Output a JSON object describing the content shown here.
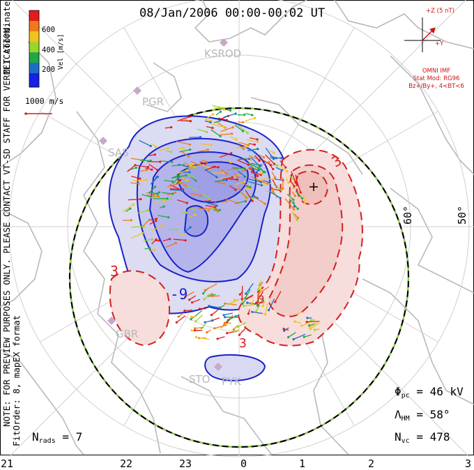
{
  "title": "08/Jan/2006 00:00-00:02 UT",
  "colorbar": {
    "label": "Vel [m/s]",
    "ticks": [
      "600",
      "400",
      "200"
    ],
    "colors": [
      "#e41b1b",
      "#f07a1b",
      "#f2c21e",
      "#9ad52a",
      "#22a745",
      "#1c6fc4",
      "#1a1ee6"
    ]
  },
  "coord_label": "MLT coordinates",
  "scale_label": "1000 m/s",
  "imf": {
    "plus_z": "+Z (5 nT)",
    "plus_y": "+Y",
    "lines": [
      "OMNI IMF",
      "Stat Mod: RG96",
      "Bz+/By+, 4<BT<6"
    ]
  },
  "disclaimer": "NOTE: FOR PREVIEW PURPOSES ONLY. PLEASE CONTACT VT-SD STAFF FOR VERIFICATION.",
  "fit_info": "FitOrder: 8, mapEX format",
  "stations": [
    "KSROD",
    "PGR",
    "SAS",
    "GBR",
    "STO",
    "PYK"
  ],
  "latitude_labels": [
    "60°",
    "50°"
  ],
  "contour_labels": [
    "-9",
    "3",
    "3",
    "3",
    "3"
  ],
  "mlt_ticks": [
    "21",
    "22",
    "23",
    "0",
    "1",
    "2",
    "3"
  ],
  "stats": {
    "nrads_label": "N",
    "nrads_sub": "rads",
    "nrads_value": "= 7",
    "phi_label": "Φ",
    "phi_sub": "pc",
    "phi_value": "= 46 kV",
    "lambda_label": "Λ",
    "lambda_sub": "HM",
    "lambda_value": "= 58°",
    "nvc_label": "N",
    "nvc_sub": "vc",
    "nvc_value": "= 478"
  }
}
